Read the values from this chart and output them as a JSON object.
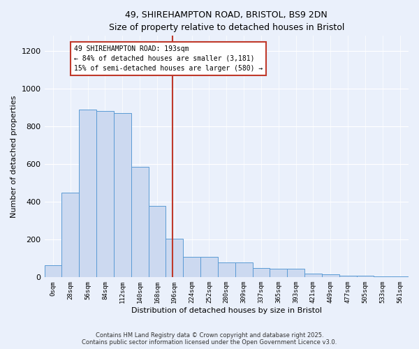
{
  "title_line1": "49, SHIREHAMPTON ROAD, BRISTOL, BS9 2DN",
  "title_line2": "Size of property relative to detached houses in Bristol",
  "xlabel": "Distribution of detached houses by size in Bristol",
  "ylabel": "Number of detached properties",
  "bin_labels": [
    "0sqm",
    "28sqm",
    "56sqm",
    "84sqm",
    "112sqm",
    "140sqm",
    "168sqm",
    "196sqm",
    "224sqm",
    "252sqm",
    "280sqm",
    "309sqm",
    "337sqm",
    "365sqm",
    "393sqm",
    "421sqm",
    "449sqm",
    "477sqm",
    "505sqm",
    "533sqm",
    "561sqm"
  ],
  "bar_heights": [
    65,
    450,
    890,
    880,
    870,
    585,
    380,
    205,
    110,
    110,
    80,
    80,
    50,
    45,
    45,
    20,
    15,
    10,
    10,
    5,
    5
  ],
  "bar_color": "#ccd9f0",
  "bar_edge_color": "#5b9bd5",
  "vline_x": 6.89,
  "vline_color": "#c0392b",
  "annotation_text": "49 SHIREHAMPTON ROAD: 193sqm\n← 84% of detached houses are smaller (3,181)\n15% of semi-detached houses are larger (580) →",
  "annotation_box_color": "#ffffff",
  "annotation_box_edge": "#c0392b",
  "ylim": [
    0,
    1280
  ],
  "yticks": [
    0,
    200,
    400,
    600,
    800,
    1000,
    1200
  ],
  "bg_color": "#eaf0fb",
  "footer_line1": "Contains HM Land Registry data © Crown copyright and database right 2025.",
  "footer_line2": "Contains public sector information licensed under the Open Government Licence v3.0."
}
